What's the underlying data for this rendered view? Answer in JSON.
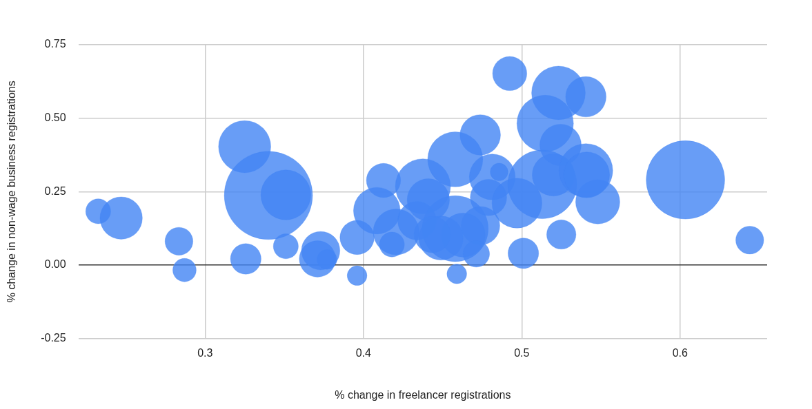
{
  "chart_data": {
    "type": "bubble",
    "xlabel": "% change in freelancer registrations",
    "ylabel": "% change in non-wage business registrations",
    "xlim": [
      0.22,
      0.655
    ],
    "xticks": [
      0.3,
      0.4,
      0.5,
      0.6
    ],
    "ylim": [
      -0.25,
      0.75
    ],
    "yticks": [
      {
        "value": -0.25,
        "label": "-0.25"
      },
      {
        "value": 0,
        "label": "0.00"
      },
      {
        "value": 0.25,
        "label": "0.25"
      },
      {
        "value": 0.5,
        "label": "0.50"
      },
      {
        "value": 0.75,
        "label": "0.75"
      }
    ],
    "grid": true,
    "legend": false,
    "series": [
      {
        "color": "#4285f4",
        "x": [
          0.2325,
          0.247,
          0.2835,
          0.287,
          0.325,
          0.34,
          0.351,
          0.3257,
          0.351,
          0.373,
          0.371,
          0.377,
          0.396,
          0.396,
          0.4127,
          0.4085,
          0.4207,
          0.418,
          0.4376,
          0.441,
          0.4338,
          0.458,
          0.4738,
          0.4814,
          0.4857,
          0.479,
          0.497,
          0.513,
          0.52,
          0.458,
          0.463,
          0.474,
          0.4713,
          0.449,
          0.4435,
          0.459,
          0.501,
          0.525,
          0.4924,
          0.5232,
          0.5405,
          0.5148,
          0.5245,
          0.5405,
          0.541,
          0.548,
          0.6034,
          0.644
        ],
        "values": [
          0.183,
          0.16,
          0.081,
          -0.017,
          0.403,
          0.237,
          0.239,
          0.021,
          0.064,
          0.049,
          0.021,
          0.019,
          -0.036,
          0.094,
          0.288,
          0.185,
          0.113,
          0.07,
          0.268,
          0.222,
          0.151,
          0.36,
          0.443,
          0.3,
          0.317,
          0.23,
          0.211,
          0.275,
          0.307,
          0.124,
          0.102,
          0.134,
          0.038,
          0.092,
          0.104,
          -0.03,
          0.04,
          0.104,
          0.652,
          0.586,
          0.573,
          0.482,
          0.409,
          0.322,
          0.307,
          0.215,
          0.29,
          0.085
        ],
        "sizes": [
          0.08,
          0.23,
          0.1,
          0.07,
          0.35,
          1,
          0.32,
          0.12,
          0.08,
          0.19,
          0.17,
          0.05,
          0.05,
          0.15,
          0.15,
          0.28,
          0.27,
          0.08,
          0.39,
          0.23,
          0.19,
          0.39,
          0.21,
          0.27,
          0.04,
          0.17,
          0.32,
          0.61,
          0.23,
          0.56,
          0.25,
          0.19,
          0.09,
          0.25,
          0.17,
          0.05,
          0.12,
          0.11,
          0.15,
          0.37,
          0.21,
          0.41,
          0.22,
          0.37,
          0.27,
          0.25,
          0.79,
          0.1
        ]
      }
    ]
  }
}
